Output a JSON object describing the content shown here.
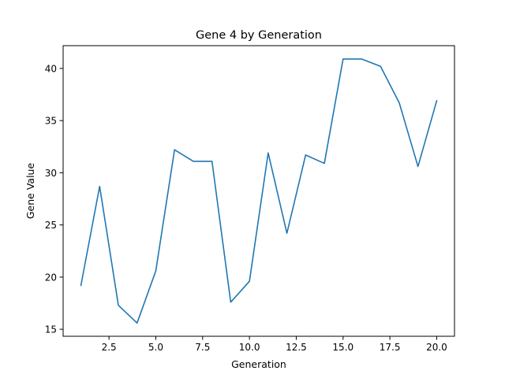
{
  "chart_data": {
    "type": "line",
    "title": "Gene 4 by Generation",
    "xlabel": "Generation",
    "ylabel": "Gene Value",
    "xlim": [
      0.05,
      20.95
    ],
    "ylim": [
      14.33,
      42.18
    ],
    "x_ticks": [
      2.5,
      5.0,
      7.5,
      10.0,
      12.5,
      15.0,
      17.5,
      20.0
    ],
    "x_tick_labels": [
      "2.5",
      "5.0",
      "7.5",
      "10.0",
      "12.5",
      "15.0",
      "17.5",
      "20.0"
    ],
    "y_ticks": [
      15,
      20,
      25,
      30,
      35,
      40
    ],
    "y_tick_labels": [
      "15",
      "20",
      "25",
      "30",
      "35",
      "40"
    ],
    "grid": false,
    "line_color": "#1f77b4",
    "series": [
      {
        "x": [
          1,
          2,
          3,
          4,
          5,
          6,
          7,
          8,
          9,
          10,
          11,
          12,
          13,
          14,
          15,
          16,
          17,
          18,
          19,
          20
        ],
        "values": [
          19.2,
          28.7,
          17.3,
          15.6,
          20.6,
          32.2,
          31.1,
          31.1,
          17.6,
          19.6,
          31.9,
          24.2,
          31.7,
          30.9,
          40.9,
          40.9,
          40.2,
          36.7,
          30.6,
          36.9
        ]
      }
    ]
  }
}
